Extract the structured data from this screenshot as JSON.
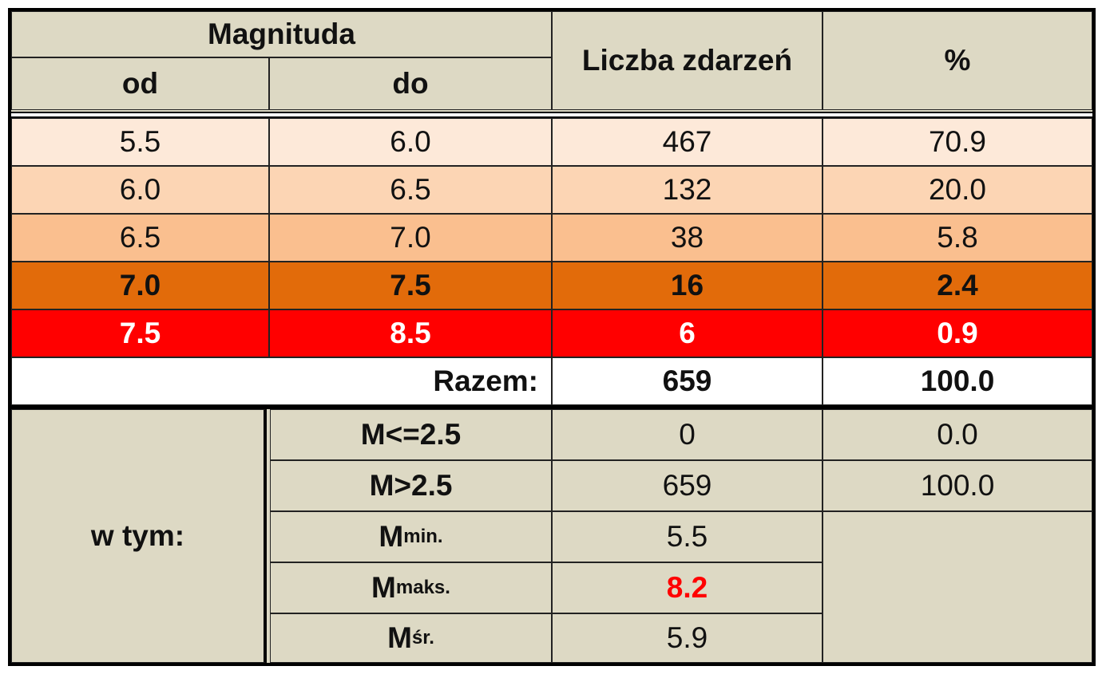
{
  "header": {
    "magnitude": "Magnituda",
    "from": "od",
    "to": "do",
    "count": "Liczba zdarzeń",
    "percent": "%"
  },
  "rows": [
    [
      "5.5",
      "6.0",
      "467",
      "70.9"
    ],
    [
      "6.0",
      "6.5",
      "132",
      "20.0"
    ],
    [
      "6.5",
      "7.0",
      "38",
      "5.8"
    ],
    [
      "7.0",
      "7.5",
      "16",
      "2.4"
    ],
    [
      "7.5",
      "8.5",
      "6",
      "0.9"
    ]
  ],
  "total": {
    "label": "Razem:",
    "count": "659",
    "percent": "100.0"
  },
  "summary": {
    "label": "w tym:",
    "rows": [
      {
        "label": "M<=2.5",
        "count": "0",
        "percent": "0.0"
      },
      {
        "label": "M>2.5",
        "count": "659",
        "percent": "100.0"
      },
      {
        "label": "M",
        "sub": "min.",
        "value": "5.5"
      },
      {
        "label": "M",
        "sub": "maks.",
        "value": "8.2"
      },
      {
        "label": "M",
        "sub": "śr.",
        "value": "5.9"
      }
    ]
  }
}
